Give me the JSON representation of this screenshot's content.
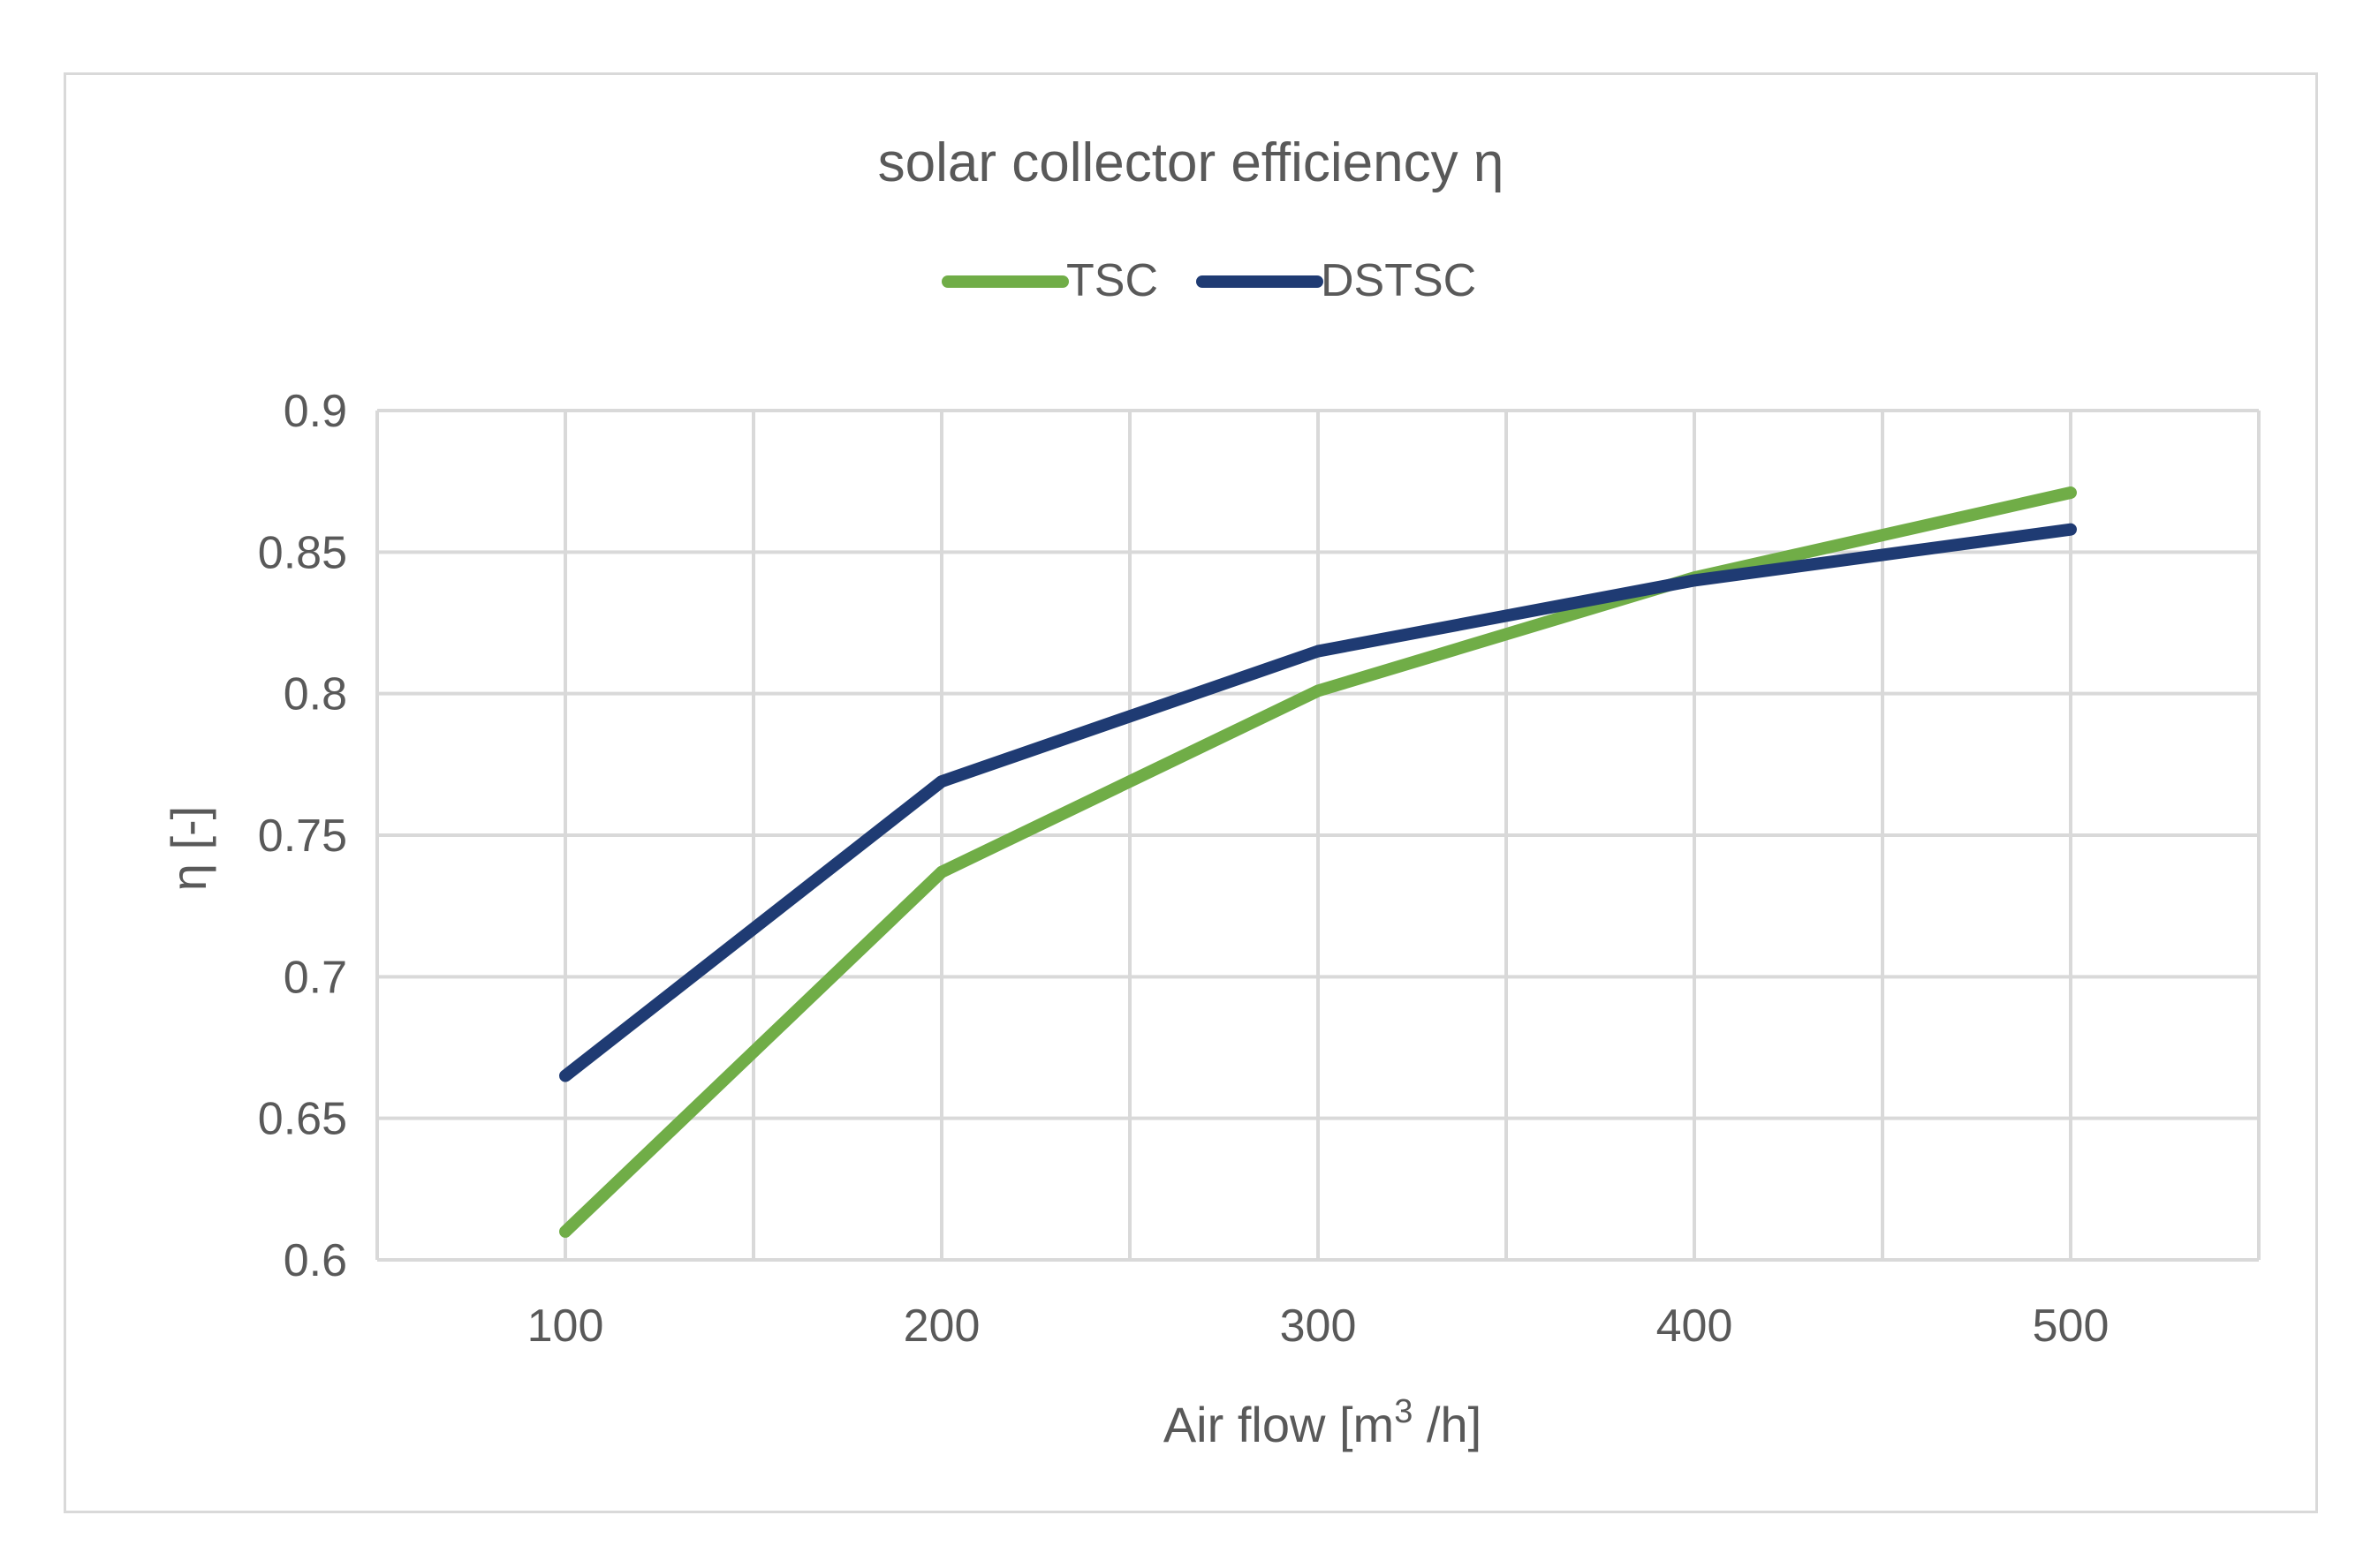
{
  "chart_data": {
    "type": "line",
    "title": "solar collector efficiency η",
    "xlabel": {
      "base": "Air flow [m",
      "sup": "3",
      "tail": " /h]"
    },
    "ylabel": "η [-]",
    "categories": [
      100,
      200,
      300,
      400,
      500
    ],
    "x_ticks": [
      "100",
      "200",
      "300",
      "400",
      "500"
    ],
    "y_ticks": [
      "0.6",
      "0.65",
      "0.7",
      "0.75",
      "0.8",
      "0.85",
      "0.9"
    ],
    "ylim": [
      0.6,
      0.9
    ],
    "grid": true,
    "legend_position": "top",
    "series": [
      {
        "name": "TSC",
        "color": "#70ad47",
        "values": [
          0.61,
          0.737,
          0.801,
          0.841,
          0.871
        ]
      },
      {
        "name": "DSTSC",
        "color": "#1f3b73",
        "values": [
          0.665,
          0.769,
          0.815,
          0.84,
          0.858
        ]
      }
    ]
  }
}
